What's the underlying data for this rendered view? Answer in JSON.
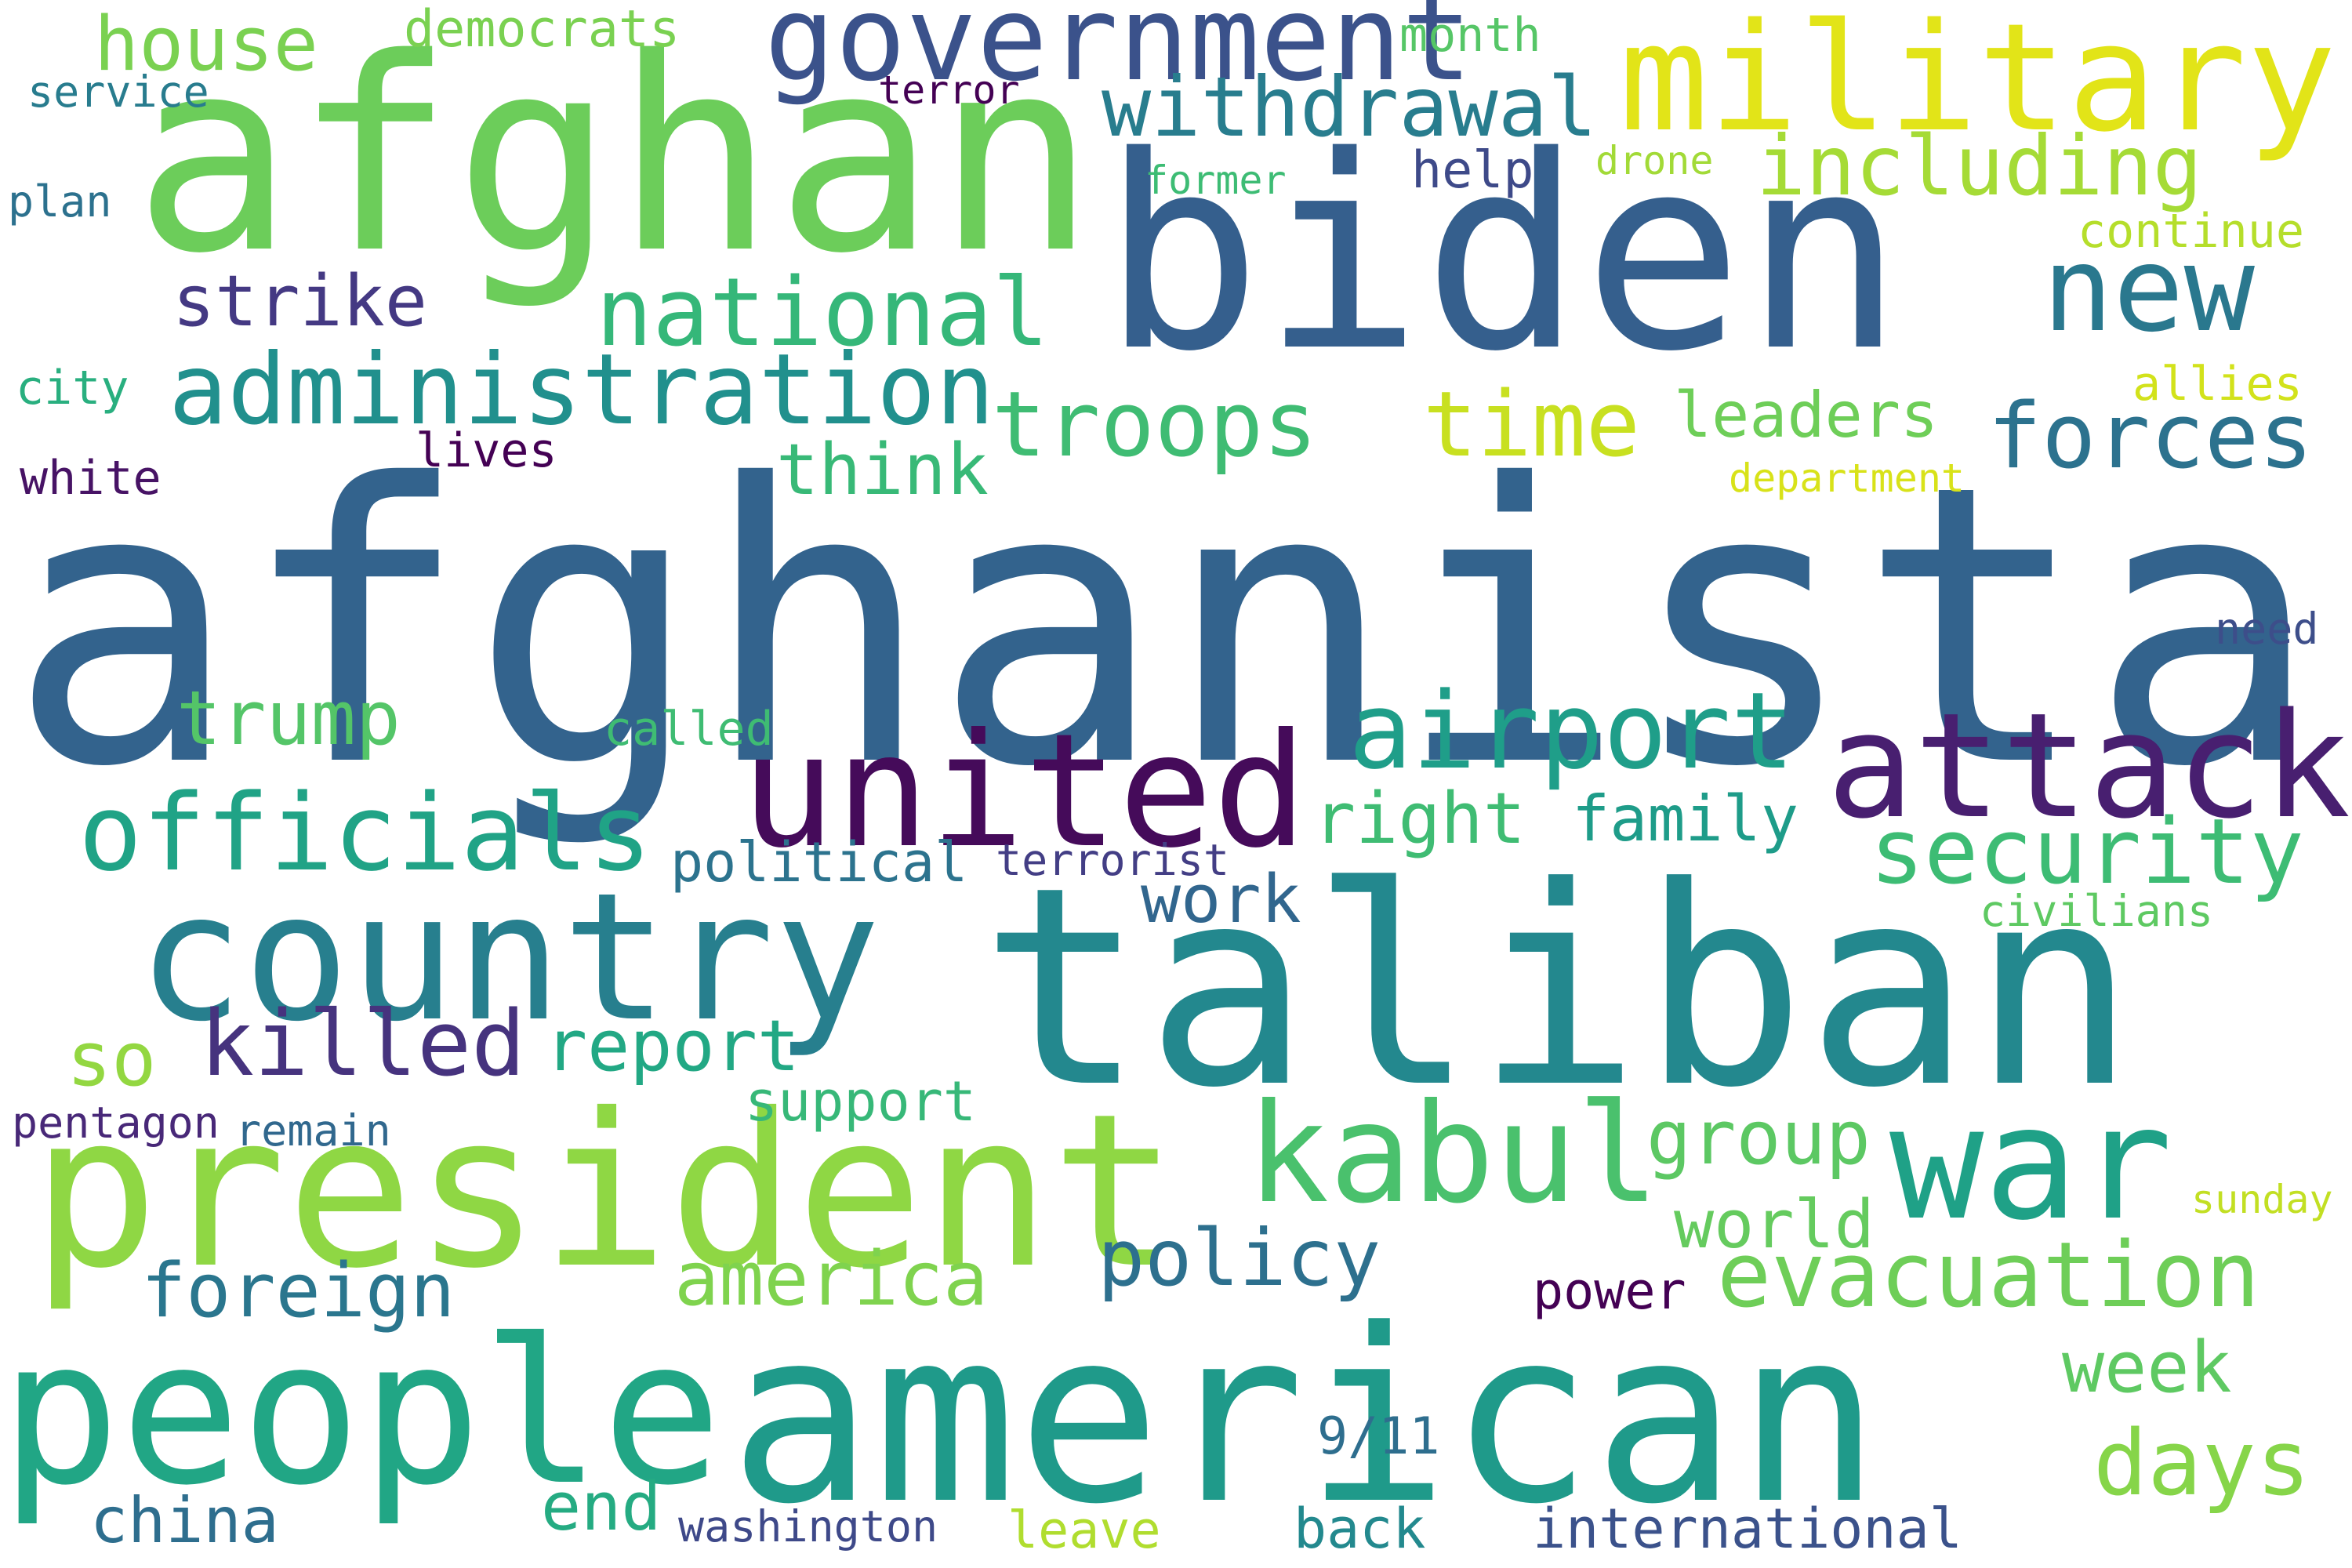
{
  "words": [
    {
      "text": "afghanistan",
      "color": "#33638d"
    },
    {
      "text": "biden",
      "color": "#355f8d"
    },
    {
      "text": "afghan",
      "color": "#6ccd5a"
    },
    {
      "text": "taliban",
      "color": "#23888e"
    },
    {
      "text": "american",
      "color": "#1f9a8a"
    },
    {
      "text": "president",
      "color": "#8fd744"
    },
    {
      "text": "military",
      "color": "#e2e418"
    },
    {
      "text": "people",
      "color": "#21a685"
    },
    {
      "text": "country",
      "color": "#277f8e"
    },
    {
      "text": "united",
      "color": "#450b5a"
    },
    {
      "text": "attack",
      "color": "#481f70"
    },
    {
      "text": "war",
      "color": "#1fa187"
    },
    {
      "text": "kabul",
      "color": "#4ac16d"
    },
    {
      "text": "government",
      "color": "#3b528b"
    },
    {
      "text": "new",
      "color": "#2a788e"
    },
    {
      "text": "officials",
      "color": "#20a386"
    },
    {
      "text": "airport",
      "color": "#1f9e89"
    },
    {
      "text": "administration",
      "color": "#21908d"
    },
    {
      "text": "national",
      "color": "#35b779"
    },
    {
      "text": "troops",
      "color": "#3fbc73"
    },
    {
      "text": "evacuation",
      "color": "#6ece58"
    },
    {
      "text": "forces",
      "color": "#2c728e"
    },
    {
      "text": "time",
      "color": "#c8e020"
    },
    {
      "text": "security",
      "color": "#3dbc74"
    },
    {
      "text": "killed",
      "color": "#46337e"
    },
    {
      "text": "withdrawal",
      "color": "#287d8e"
    },
    {
      "text": "including",
      "color": "#a5db36"
    },
    {
      "text": "days",
      "color": "#86d549"
    },
    {
      "text": "house",
      "color": "#7ad151"
    },
    {
      "text": "policy",
      "color": "#2d708e"
    },
    {
      "text": "so",
      "color": "#93d741"
    },
    {
      "text": "report",
      "color": "#22a884"
    },
    {
      "text": "trump",
      "color": "#54c568"
    },
    {
      "text": "foreign",
      "color": "#2a768e"
    },
    {
      "text": "america",
      "color": "#7fd34e"
    },
    {
      "text": "week",
      "color": "#5ec962"
    },
    {
      "text": "group",
      "color": "#5cc863"
    },
    {
      "text": "strike",
      "color": "#443983"
    },
    {
      "text": "right",
      "color": "#3fbc73"
    },
    {
      "text": "family",
      "color": "#1e9c89"
    },
    {
      "text": "world",
      "color": "#65cb5e"
    },
    {
      "text": "work",
      "color": "#31668e"
    },
    {
      "text": "leaders",
      "color": "#6ece58"
    },
    {
      "text": "think",
      "color": "#38b977"
    },
    {
      "text": "end",
      "color": "#25ab82"
    },
    {
      "text": "china",
      "color": "#2e6e8e"
    },
    {
      "text": "support",
      "color": "#37b878"
    },
    {
      "text": "political",
      "color": "#2c738e"
    },
    {
      "text": "international",
      "color": "#3b528b"
    },
    {
      "text": "back",
      "color": "#23898e"
    },
    {
      "text": "leave",
      "color": "#b0dd2f"
    },
    {
      "text": "9/11",
      "color": "#2e6e8e"
    },
    {
      "text": "democrats",
      "color": "#7ad151"
    },
    {
      "text": "month",
      "color": "#56c667"
    },
    {
      "text": "help",
      "color": "#3e4a89"
    },
    {
      "text": "continue",
      "color": "#b5de2b"
    },
    {
      "text": "called",
      "color": "#3fbc73"
    },
    {
      "text": "terrorist",
      "color": "#433e85"
    },
    {
      "text": "civilians",
      "color": "#5ec962"
    },
    {
      "text": "power",
      "color": "#440154"
    },
    {
      "text": "washington",
      "color": "#3e4989"
    },
    {
      "text": "allies",
      "color": "#d2e21b"
    },
    {
      "text": "department",
      "color": "#d8e219"
    },
    {
      "text": "sunday",
      "color": "#c2df23"
    },
    {
      "text": "need",
      "color": "#3d4e8a"
    },
    {
      "text": "white",
      "color": "#471365"
    },
    {
      "text": "lives",
      "color": "#440154"
    },
    {
      "text": "city",
      "color": "#29af7f"
    },
    {
      "text": "remain",
      "color": "#31688e"
    },
    {
      "text": "pentagon",
      "color": "#482878"
    },
    {
      "text": "service",
      "color": "#287c8e"
    },
    {
      "text": "terror",
      "color": "#440154"
    },
    {
      "text": "plan",
      "color": "#2c718e"
    },
    {
      "text": "former",
      "color": "#3dbc74"
    },
    {
      "text": "drone",
      "color": "#a2da37"
    }
  ]
}
